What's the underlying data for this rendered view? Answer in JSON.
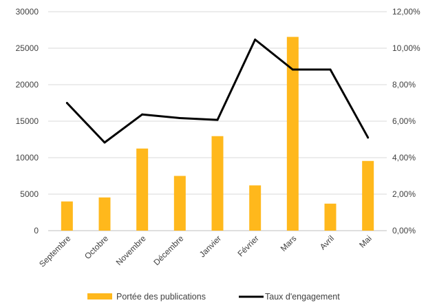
{
  "chart_data": {
    "type": "bar",
    "categories": [
      "Septembre",
      "Octobre",
      "Novembre",
      "Décembre",
      "Janvier",
      "Février",
      "Mars",
      "Avril",
      "Mai"
    ],
    "series": [
      {
        "name": "Portée des publications",
        "type": "bar",
        "axis": "left",
        "color": "#FFB81C",
        "values": [
          4000,
          4550,
          11250,
          7500,
          12950,
          6200,
          26550,
          3700,
          9550
        ]
      },
      {
        "name": "Taux d'engagement",
        "type": "line",
        "axis": "right",
        "color": "#000000",
        "values": [
          0.07,
          0.0483,
          0.0637,
          0.0617,
          0.0607,
          0.1047,
          0.0883,
          0.0883,
          0.051
        ]
      }
    ],
    "y_left": {
      "min": 0,
      "max": 30000,
      "ticks": [
        "0",
        "5000",
        "10000",
        "15000",
        "20000",
        "25000",
        "30000"
      ]
    },
    "y_right": {
      "min": 0,
      "max": 0.12,
      "ticks": [
        "0,00%",
        "2,00%",
        "4,00%",
        "6,00%",
        "8,00%",
        "10,00%",
        "12,00%"
      ]
    },
    "grid": true,
    "legend": {
      "position": "bottom",
      "labels": [
        "Portée des publications",
        "Taux d'engagement"
      ]
    }
  }
}
